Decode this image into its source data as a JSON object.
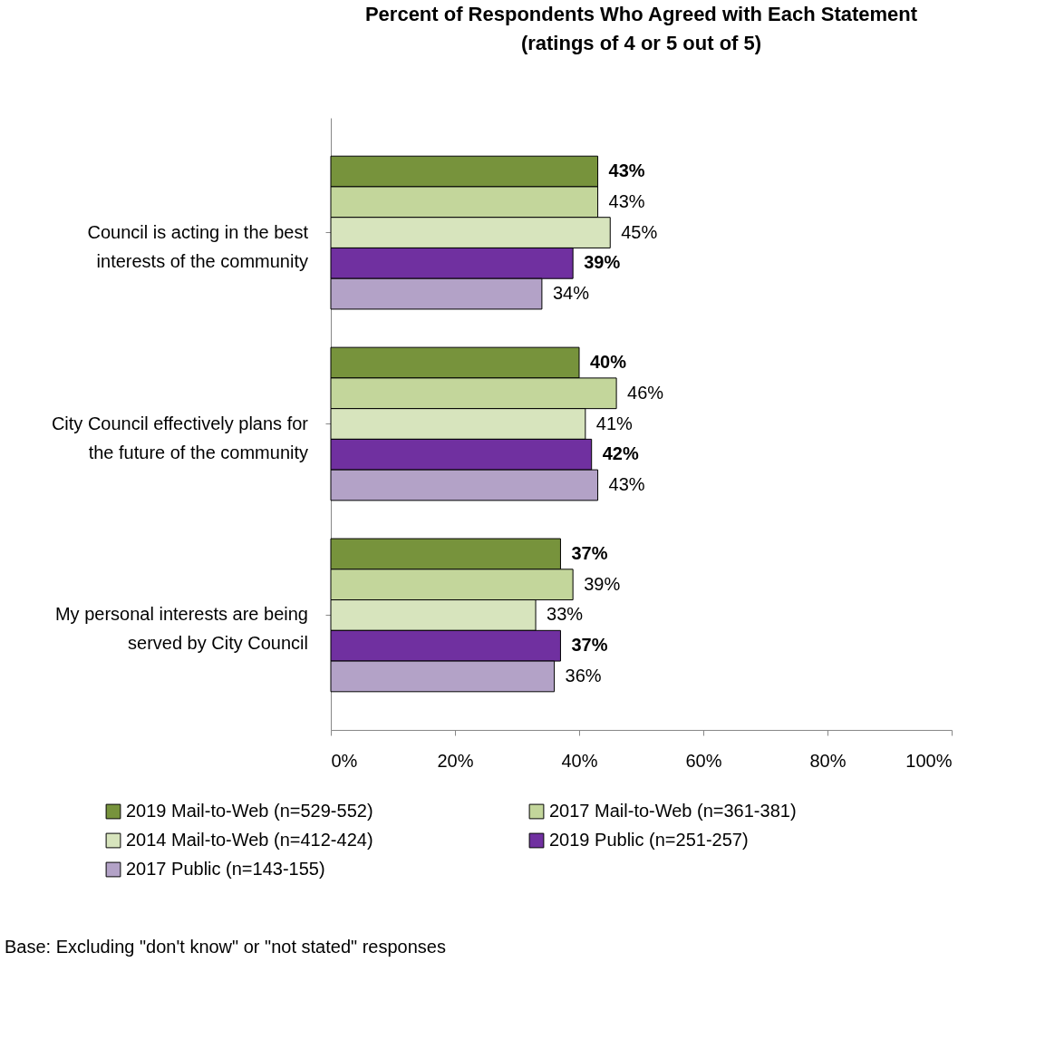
{
  "chart_data": {
    "type": "bar",
    "orientation": "horizontal",
    "title": "Percent of Respondents Who Agreed with Each Statement",
    "subtitle": "(ratings of 4 or 5 out of 5)",
    "categories": [
      "Council is acting in the best interests of the community",
      "City Council effectively plans for the future of the community",
      "My personal interests are being served by City Council"
    ],
    "series": [
      {
        "name": "2019 Mail-to-Web (n=529-552)",
        "color": "#77933c",
        "values": [
          43,
          40,
          37
        ],
        "value_labels": [
          "43%",
          "40%",
          "37%"
        ]
      },
      {
        "name": "2017 Mail-to-Web (n=361-381)",
        "color": "#c3d69b",
        "values": [
          43,
          46,
          39
        ],
        "value_labels": [
          "43%",
          "46%",
          "39%"
        ]
      },
      {
        "name": "2014 Mail-to-Web (n=412-424)",
        "color": "#d7e4bd",
        "values": [
          45,
          41,
          33
        ],
        "value_labels": [
          "45%",
          "41%",
          "33%"
        ]
      },
      {
        "name": "2019 Public (n=251-257)",
        "color": "#7030a0",
        "values": [
          39,
          42,
          37
        ],
        "value_labels": [
          "39%",
          "42%",
          "37%"
        ]
      },
      {
        "name": "2017 Public (n=143-155)",
        "color": "#b3a2c7",
        "values": [
          34,
          43,
          36
        ],
        "value_labels": [
          "34%",
          "43%",
          "36%"
        ]
      }
    ],
    "xlim": [
      0,
      100
    ],
    "xticks": [
      {
        "value": 0,
        "label": "0%"
      },
      {
        "value": 20,
        "label": "20%"
      },
      {
        "value": 40,
        "label": "40%"
      },
      {
        "value": 60,
        "label": "60%"
      },
      {
        "value": 80,
        "label": "80%"
      },
      {
        "value": 100,
        "label": "100%"
      }
    ],
    "grid": false,
    "legend": "bottom",
    "annotations": [
      "Base: Excluding \"don't know\" or \"not stated\" responses"
    ]
  }
}
